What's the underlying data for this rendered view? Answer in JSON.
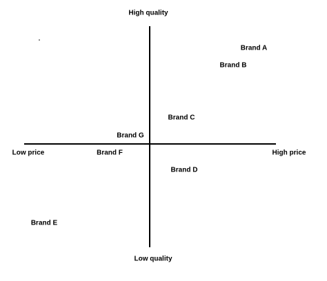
{
  "axes": {
    "top": "High quality",
    "bottom": "Low quality",
    "left": "Low price",
    "right": "High price"
  },
  "brands": [
    {
      "label": "Brand A",
      "color": "#c00000"
    },
    {
      "label": "Brand B",
      "color": "#00a050"
    },
    {
      "label": "Brand C",
      "color": "#1f6fa0"
    },
    {
      "label": "Brand D",
      "color": "#9c3b3b"
    },
    {
      "label": "Brand E",
      "color": "#d07a20"
    },
    {
      "label": "Brand F",
      "color": "#7030a0"
    },
    {
      "label": "Brand G",
      "color": "#7f7f3a"
    }
  ]
}
